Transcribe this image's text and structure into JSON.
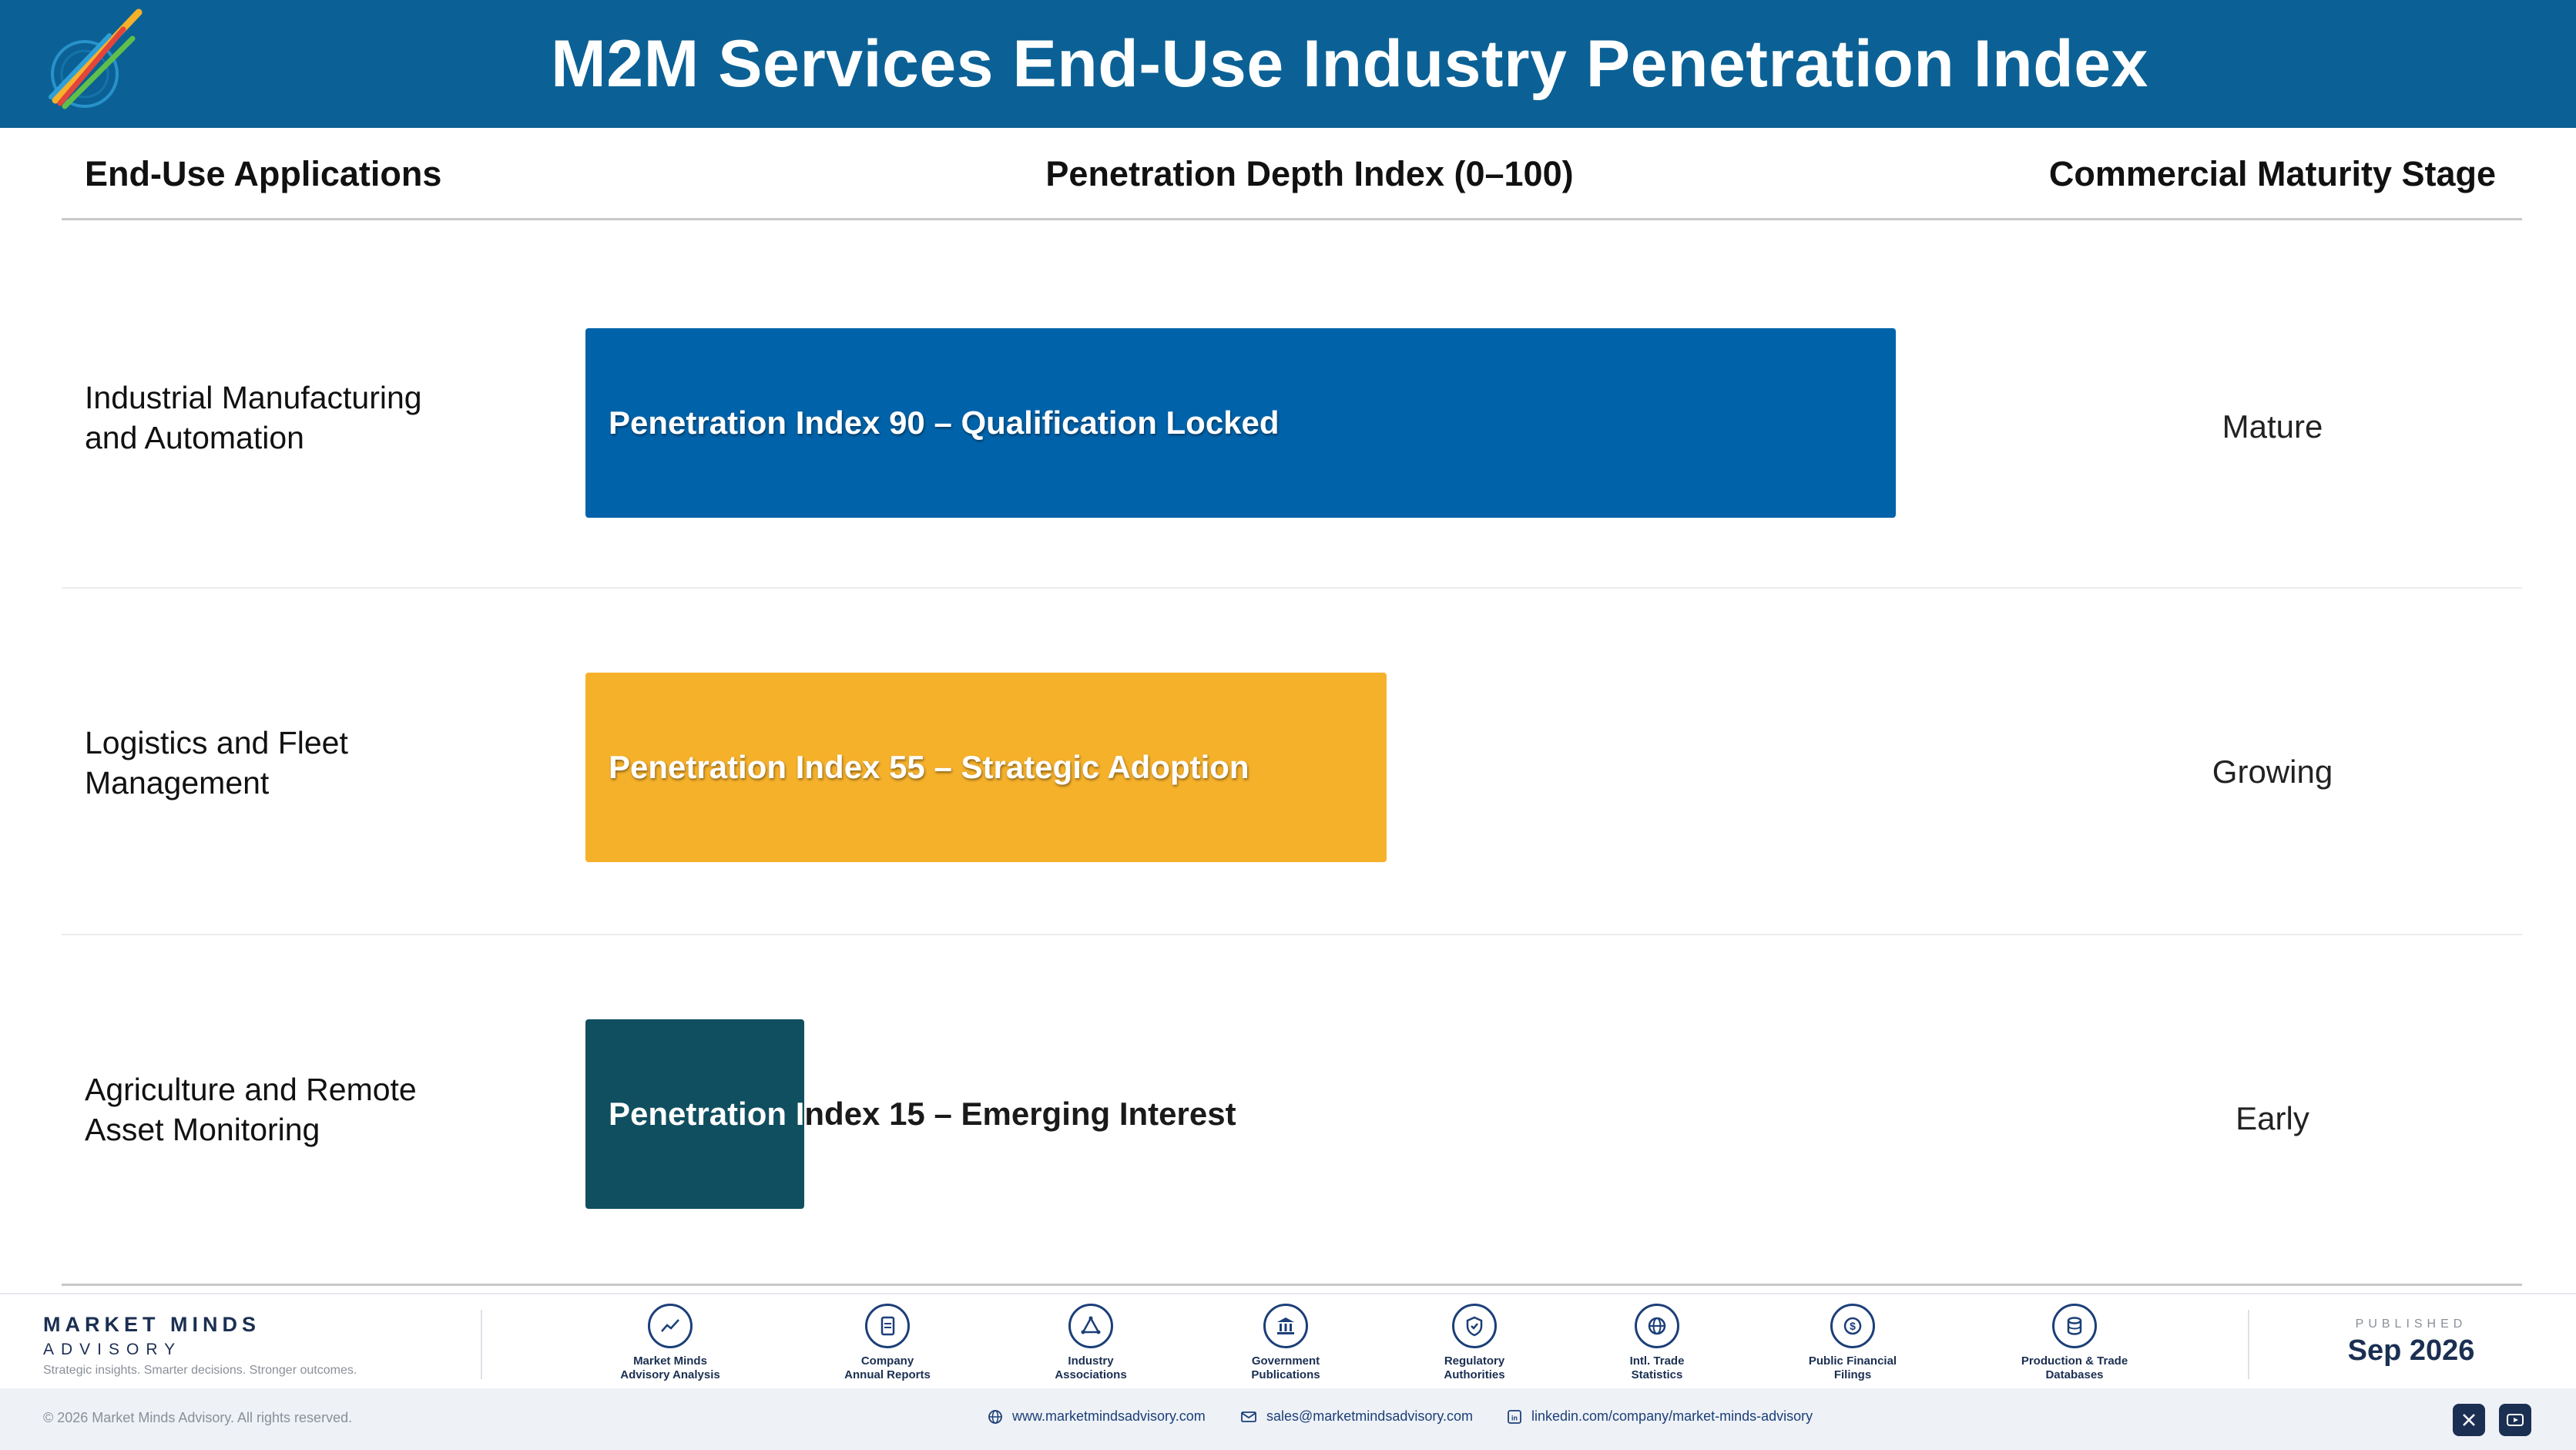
{
  "header": {
    "title": "M2M Services End-Use Industry Penetration Index"
  },
  "columns": {
    "applications": "End-Use Applications",
    "index": "Penetration Depth Index (0–100)",
    "stage": "Commercial Maturity Stage"
  },
  "chart_data": {
    "type": "bar",
    "orientation": "horizontal",
    "title": "M2M Services End-Use Industry Penetration Index",
    "xlabel": "Penetration Depth Index (0–100)",
    "xlim": [
      0,
      100
    ],
    "grid": false,
    "categories": [
      "Industrial Manufacturing and Automation",
      "Logistics and Fleet Management",
      "Agriculture and Remote Asset Monitoring"
    ],
    "values": [
      90,
      55,
      15
    ],
    "data_labels": [
      "Penetration Index 90 – Qualification Locked",
      "Penetration Index 55 – Strategic Adoption",
      "Penetration Index 15 – Emerging Interest"
    ],
    "stages": [
      "Mature",
      "Growing",
      "Early"
    ],
    "colors": [
      "#0063aa",
      "#f6b12b",
      "#0f4f60"
    ]
  },
  "rows": [
    {
      "label_line1": "Industrial Manufacturing",
      "label_line2": "and Automation",
      "bar_label": "Penetration Index 90 – Qualification Locked",
      "stage": "Mature"
    },
    {
      "label_line1": "Logistics and Fleet",
      "label_line2": "Management",
      "bar_label": "Penetration Index 55 – Strategic Adoption",
      "stage": "Growing"
    },
    {
      "label_line1": "Agriculture and Remote",
      "label_line2": "Asset Monitoring",
      "bar_label": "Penetration Index 15 – Emerging Interest",
      "stage": "Early"
    }
  ],
  "footer": {
    "brand_name": "MARKET MINDS",
    "brand_sub": "ADVISORY",
    "brand_tagline": "Strategic insights. Smarter decisions. Stronger outcomes.",
    "sources": [
      {
        "line1": "Market Minds",
        "line2": "Advisory Analysis",
        "icon": "trend-chart-icon"
      },
      {
        "line1": "Company",
        "line2": "Annual Reports",
        "icon": "document-icon"
      },
      {
        "line1": "Industry",
        "line2": "Associations",
        "icon": "network-icon"
      },
      {
        "line1": "Government",
        "line2": "Publications",
        "icon": "government-building-icon"
      },
      {
        "line1": "Regulatory",
        "line2": "Authorities",
        "icon": "shield-check-icon"
      },
      {
        "line1": "Intl. Trade",
        "line2": "Statistics",
        "icon": "globe-icon"
      },
      {
        "line1": "Public Financial",
        "line2": "Filings",
        "icon": "dollar-coin-icon"
      },
      {
        "line1": "Production & Trade",
        "line2": "Databases",
        "icon": "database-icon"
      }
    ],
    "published_label": "PUBLISHED",
    "published_date": "Sep 2026",
    "copyright": "© 2026 Market Minds Advisory. All rights reserved.",
    "website": "www.marketmindsadvisory.com",
    "email": "sales@marketmindsadvisory.com",
    "linkedin": "linkedin.com/company/market-minds-advisory"
  }
}
